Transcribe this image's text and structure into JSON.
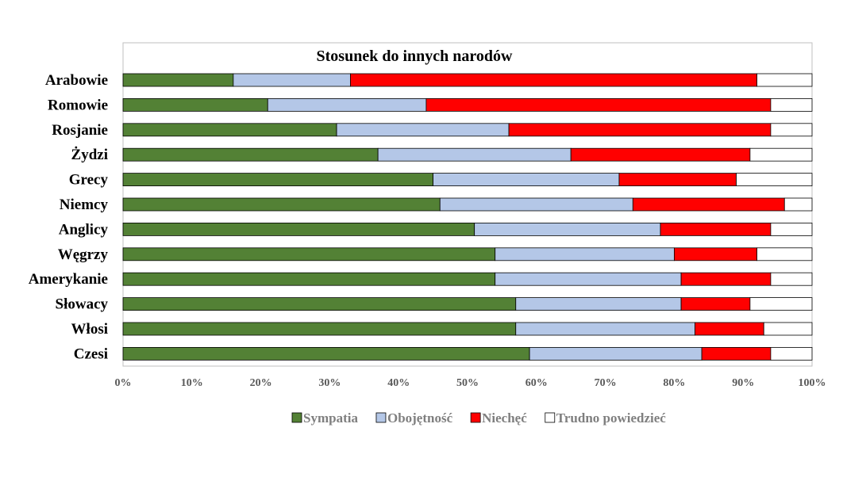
{
  "chart_data": {
    "type": "bar",
    "orientation": "horizontal",
    "stacked": "percent",
    "title": "Stosunek do innych narodów",
    "categories": [
      "Arabowie",
      "Romowie",
      "Rosjanie",
      "Żydzi",
      "Grecy",
      "Niemcy",
      "Anglicy",
      "Węgrzy",
      "Amerykanie",
      "Słowacy",
      "Włosi",
      "Czesi"
    ],
    "series": [
      {
        "name": "Sympatia",
        "color": "#538135",
        "values": [
          16,
          21,
          31,
          37,
          45,
          46,
          51,
          54,
          54,
          57,
          57,
          59
        ]
      },
      {
        "name": "Obojętność",
        "color": "#b4c7e7",
        "values": [
          17,
          23,
          25,
          28,
          27,
          28,
          27,
          26,
          27,
          24,
          26,
          25
        ]
      },
      {
        "name": "Niechęć",
        "color": "#ff0000",
        "values": [
          59,
          50,
          38,
          26,
          17,
          22,
          16,
          12,
          13,
          10,
          10,
          10
        ]
      },
      {
        "name": "Trudno powiedzieć",
        "color": "#ffffff",
        "values": [
          8,
          6,
          6,
          9,
          11,
          4,
          6,
          8,
          6,
          9,
          7,
          6
        ]
      }
    ],
    "xlim": [
      0,
      100
    ],
    "x_ticks": [
      "0%",
      "10%",
      "20%",
      "30%",
      "40%",
      "50%",
      "60%",
      "70%",
      "80%",
      "90%",
      "100%"
    ],
    "grid": false,
    "legend_position": "bottom"
  }
}
